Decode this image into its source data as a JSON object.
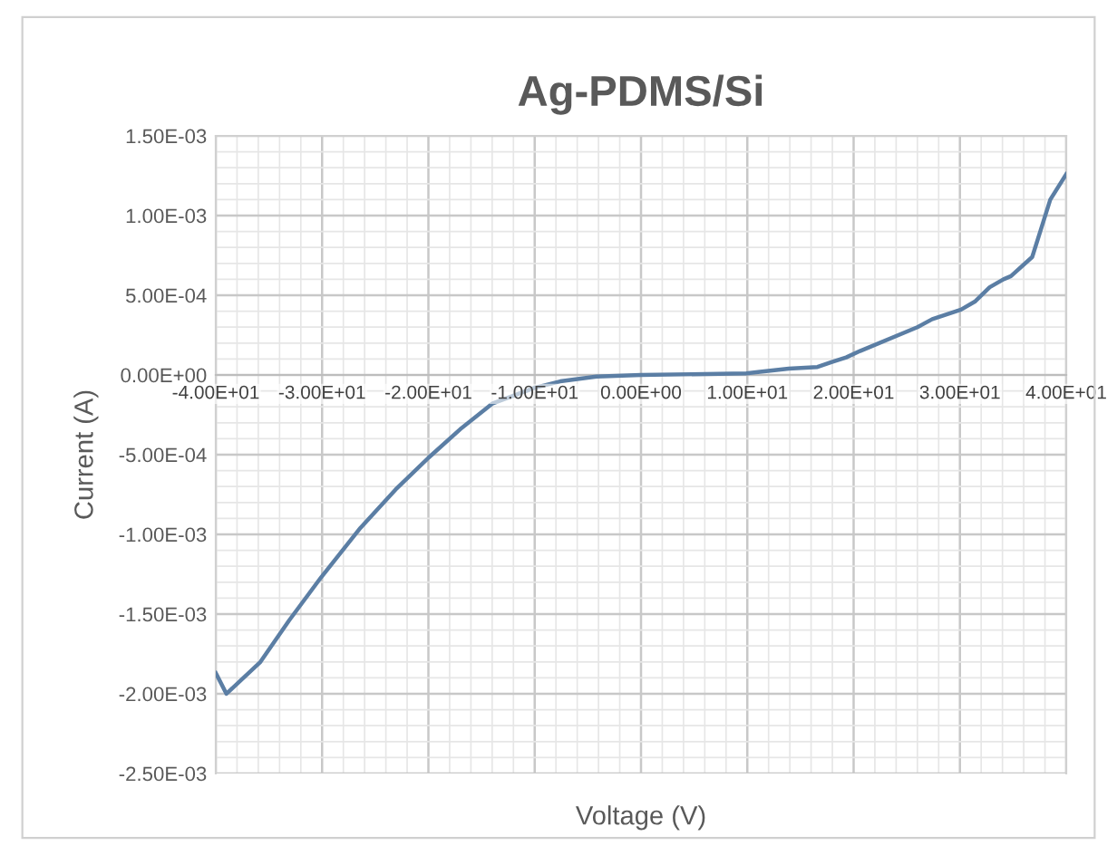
{
  "chart_data": {
    "type": "line",
    "title": "Ag-PDMS/Si",
    "xlabel": "Voltage (V)",
    "ylabel": "Current (A)",
    "grid": true,
    "marker": "none",
    "line_style": "solid",
    "xlim": [
      -40,
      40
    ],
    "ylim": [
      -0.0025,
      0.0015
    ],
    "xticks": [
      {
        "value": -40,
        "label": "-4.00E+01"
      },
      {
        "value": -30,
        "label": "-3.00E+01"
      },
      {
        "value": -20,
        "label": "-2.00E+01"
      },
      {
        "value": -10,
        "label": "-1.00E+01"
      },
      {
        "value": 0,
        "label": "0.00E+00"
      },
      {
        "value": 10,
        "label": "1.00E+01"
      },
      {
        "value": 20,
        "label": "2.00E+01"
      },
      {
        "value": 30,
        "label": "3.00E+01"
      },
      {
        "value": 40,
        "label": "4.00E+01"
      }
    ],
    "yticks": [
      {
        "value": -0.0025,
        "label": "-2.50E-03"
      },
      {
        "value": -0.002,
        "label": "-2.00E-03"
      },
      {
        "value": -0.0015,
        "label": "-1.50E-03"
      },
      {
        "value": -0.001,
        "label": "-1.00E-03"
      },
      {
        "value": -0.0005,
        "label": "-5.00E-04"
      },
      {
        "value": 0,
        "label": "0.00E+00"
      },
      {
        "value": 0.0005,
        "label": "5.00E-04"
      },
      {
        "value": 0.001,
        "label": "1.00E-03"
      },
      {
        "value": 0.0015,
        "label": "1.50E-03"
      }
    ],
    "series": [
      {
        "color": "#5b7ea4",
        "x": [
          -40,
          -39,
          -35.8,
          -33.1,
          -30.1,
          -26.4,
          -23.1,
          -20,
          -17,
          -14,
          -10,
          -7.6,
          -4.2,
          0,
          9.9,
          11.2,
          13.9,
          16.6,
          17.9,
          19.3,
          20.6,
          26,
          27.4,
          30.1,
          31.4,
          32.8,
          34.1,
          34.8,
          36.8,
          38.5,
          40
        ],
        "values": [
          -0.00187,
          -0.002,
          -0.0018,
          -0.00154,
          -0.00127,
          -0.00096,
          -0.00072,
          -0.00052,
          -0.00034,
          -0.00018,
          -8e-05,
          -4e-05,
          -1e-05,
          0,
          1e-05,
          2e-05,
          4e-05,
          5e-05,
          8e-05,
          0.00011,
          0.00015,
          0.0003,
          0.00035,
          0.00041,
          0.00046,
          0.00055,
          0.0006,
          0.00062,
          0.00074,
          0.0011,
          0.00126
        ]
      }
    ]
  }
}
